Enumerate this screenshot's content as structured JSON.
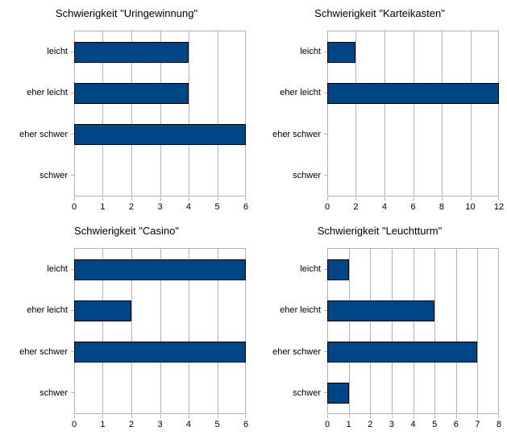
{
  "page": {
    "background": "#ffffff"
  },
  "colors": {
    "bar_fill": "#004586",
    "bar_border": "#000000",
    "grid": "#b3b3b3",
    "text": "#000000"
  },
  "chart_data": [
    {
      "type": "bar",
      "orientation": "horizontal",
      "title": "Schwierigkeit \"Uringewinnung\"",
      "categories": [
        "leicht",
        "eher leicht",
        "eher schwer",
        "schwer"
      ],
      "values": [
        4,
        4,
        6,
        0
      ],
      "xlim": [
        0,
        6
      ],
      "xticks": [
        0,
        1,
        2,
        3,
        4,
        5,
        6
      ],
      "grid": "vertical",
      "legend": "none"
    },
    {
      "type": "bar",
      "orientation": "horizontal",
      "title": "Schwierigkeit \"Karteikasten\"",
      "categories": [
        "leicht",
        "eher leicht",
        "eher schwer",
        "schwer"
      ],
      "values": [
        2,
        12,
        0,
        0
      ],
      "xlim": [
        0,
        12
      ],
      "xticks": [
        0,
        2,
        4,
        6,
        8,
        10,
        12
      ],
      "grid": "vertical",
      "legend": "none"
    },
    {
      "type": "bar",
      "orientation": "horizontal",
      "title": "Schwierigkeit \"Casino\"",
      "categories": [
        "leicht",
        "eher leicht",
        "eher schwer",
        "schwer"
      ],
      "values": [
        6,
        2,
        6,
        0
      ],
      "xlim": [
        0,
        6
      ],
      "xticks": [
        0,
        1,
        2,
        3,
        4,
        5,
        6
      ],
      "grid": "vertical",
      "legend": "none"
    },
    {
      "type": "bar",
      "orientation": "horizontal",
      "title": "Schwierigkeit \"Leuchtturm\"",
      "categories": [
        "leicht",
        "eher leicht",
        "eher schwer",
        "schwer"
      ],
      "values": [
        1,
        5,
        7,
        1
      ],
      "xlim": [
        0,
        8
      ],
      "xticks": [
        0,
        1,
        2,
        3,
        4,
        5,
        6,
        7,
        8
      ],
      "grid": "vertical",
      "legend": "none"
    }
  ]
}
